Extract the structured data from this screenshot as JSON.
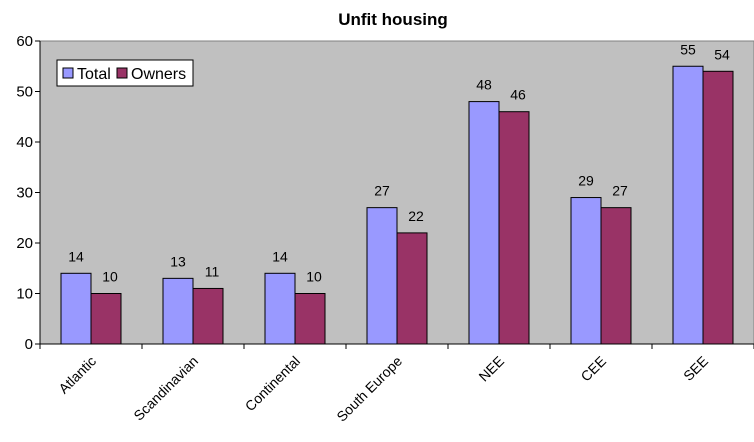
{
  "chart_data": {
    "type": "bar",
    "title": "Unfit housing",
    "xlabel": "",
    "ylabel": "",
    "ylim": [
      0,
      60
    ],
    "yticks": [
      0,
      10,
      20,
      30,
      40,
      50,
      60
    ],
    "categories": [
      "Atlantic",
      "Scandinavian",
      "Continental",
      "South Europe",
      "NEE",
      "CEE",
      "SEE"
    ],
    "series": [
      {
        "name": "Total",
        "values": [
          14,
          13,
          14,
          27,
          48,
          29,
          55
        ],
        "color": "#9999ff"
      },
      {
        "name": "Owners",
        "values": [
          10,
          11,
          10,
          22,
          46,
          27,
          54
        ],
        "color": "#993366"
      }
    ],
    "plot_background": "#c0c0c0",
    "grid": false,
    "legend_position": "top-left",
    "data_labels": true
  }
}
